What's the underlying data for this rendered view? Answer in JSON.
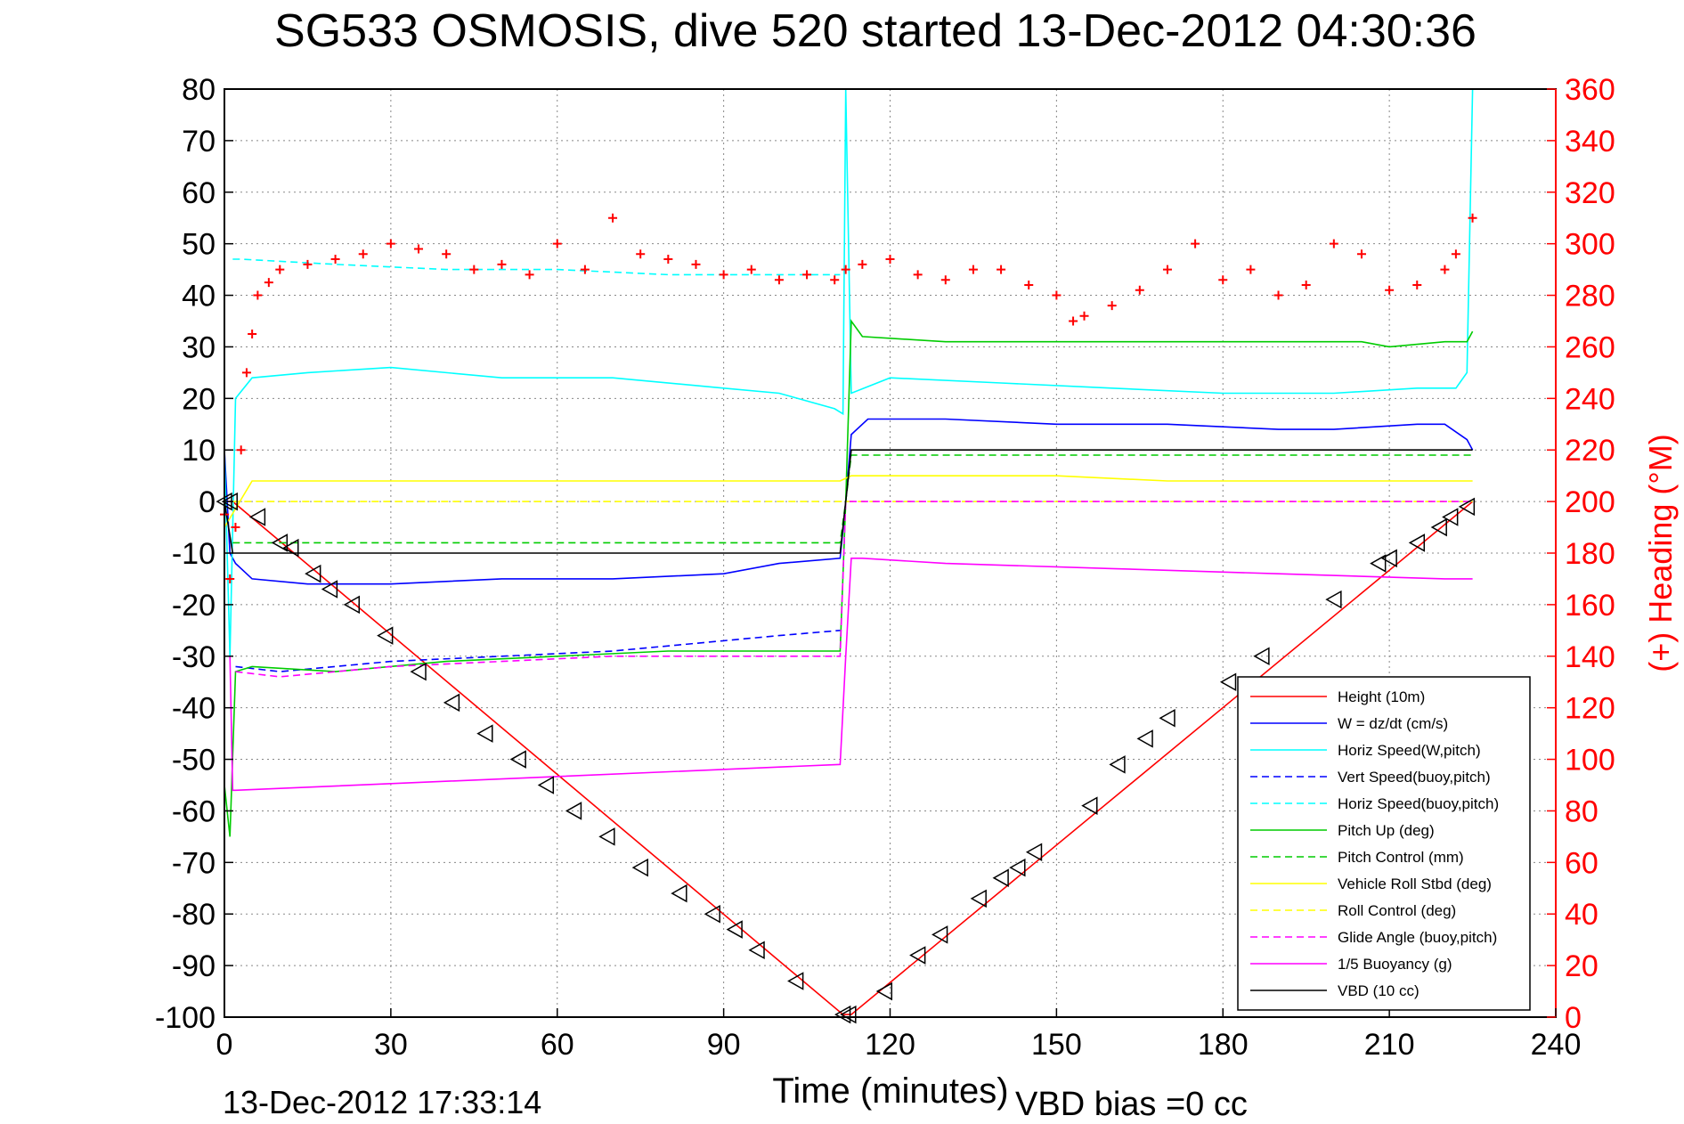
{
  "title": "SG533 OSMOSIS, dive 520 started 13-Dec-2012 04:30:36",
  "footer": {
    "timestamp": "13-Dec-2012 17:33:14",
    "vbd_bias": "VBD bias =0 cc"
  },
  "colors": {
    "height": "#ff0000",
    "w": "#0000ff",
    "horiz_speed": "#00ffff",
    "pitch": "#00cc00",
    "roll": "#ffff00",
    "glide": "#ff00ff",
    "buoyancy": "#ff00ff",
    "vbd": "#000000",
    "heading": "#ff0000",
    "right_axis": "#ff0000"
  },
  "chart_data": {
    "type": "line",
    "title": "SG533 OSMOSIS, dive 520 started 13-Dec-2012 04:30:36",
    "xlabel": "Time (minutes)",
    "ylabel": "",
    "y2label": "(+) Heading (°M)",
    "xlim": [
      0,
      240
    ],
    "ylim": [
      -100,
      80
    ],
    "y2lim": [
      0,
      360
    ],
    "xticks": [
      0,
      30,
      60,
      90,
      120,
      150,
      180,
      210,
      240
    ],
    "yticks": [
      -100,
      -90,
      -80,
      -70,
      -60,
      -50,
      -40,
      -30,
      -20,
      -10,
      0,
      10,
      20,
      30,
      40,
      50,
      60,
      70,
      80
    ],
    "y2ticks": [
      0,
      20,
      40,
      60,
      80,
      100,
      120,
      140,
      160,
      180,
      200,
      220,
      240,
      260,
      280,
      300,
      320,
      340,
      360
    ],
    "grid": true,
    "legend_position": "bottom-right",
    "series": [
      {
        "name": "Height (10m)",
        "style": "solid",
        "color": "#ff0000",
        "x": [
          0,
          1.5,
          111.5,
          113,
          225
        ],
        "y": [
          0,
          0,
          -99.5,
          -99.5,
          0
        ]
      },
      {
        "name": "W = dz/dt (cm/s)",
        "style": "solid",
        "color": "#0000ff",
        "x": [
          0,
          1,
          2,
          5,
          15,
          30,
          50,
          70,
          90,
          100,
          111,
          112,
          113,
          116,
          130,
          150,
          170,
          190,
          200,
          215,
          220,
          224,
          225
        ],
        "y": [
          10,
          -10,
          -12,
          -15,
          -16,
          -16,
          -15,
          -15,
          -14,
          -12,
          -11,
          0,
          13,
          16,
          16,
          15,
          15,
          14,
          14,
          15,
          15,
          12,
          10
        ]
      },
      {
        "name": "Horiz Speed(W,pitch)",
        "style": "solid",
        "color": "#00ffff",
        "x": [
          0,
          1,
          2,
          5,
          15,
          30,
          50,
          70,
          90,
          100,
          110,
          111.5,
          112,
          113,
          120,
          140,
          160,
          180,
          200,
          215,
          222,
          224,
          225
        ],
        "y": [
          10,
          -30,
          20,
          24,
          25,
          26,
          24,
          24,
          22,
          21,
          18,
          17,
          80,
          21,
          24,
          23,
          22,
          21,
          21,
          22,
          22,
          25,
          80
        ]
      },
      {
        "name": "Vert Speed(buoy,pitch)",
        "style": "dashed",
        "color": "#0000ff",
        "x": [
          2,
          10,
          30,
          50,
          70,
          90,
          100,
          111
        ],
        "y": [
          -32,
          -33,
          -31,
          -30,
          -29,
          -27,
          -26,
          -25
        ]
      },
      {
        "name": "Horiz Speed(buoy,pitch)",
        "style": "dashed",
        "color": "#00ffff",
        "x": [
          1.5,
          3,
          20,
          40,
          60,
          80,
          100,
          111
        ],
        "y": [
          47,
          47,
          46,
          45,
          45,
          44,
          44,
          44
        ]
      },
      {
        "name": "Pitch Up (deg)",
        "style": "solid",
        "color": "#00cc00",
        "x": [
          0,
          1,
          2,
          5,
          20,
          40,
          60,
          80,
          100,
          111,
          112,
          113,
          115,
          130,
          150,
          170,
          190,
          205,
          210,
          220,
          224,
          225
        ],
        "y": [
          -55,
          -65,
          -33,
          -32,
          -33,
          -31,
          -30,
          -29,
          -29,
          -29,
          0,
          35,
          32,
          31,
          31,
          31,
          31,
          31,
          30,
          31,
          31,
          33
        ]
      },
      {
        "name": "Pitch Control (mm)",
        "style": "dashed",
        "color": "#00cc00",
        "x": [
          1.5,
          3,
          111,
          112,
          113,
          225
        ],
        "y": [
          -8,
          -8,
          -8,
          0,
          9,
          9
        ]
      },
      {
        "name": "Vehicle Roll Stbd (deg)",
        "style": "solid",
        "color": "#ffff00",
        "x": [
          0,
          5,
          30,
          60,
          90,
          111,
          113,
          130,
          150,
          170,
          190,
          210,
          225
        ],
        "y": [
          -5,
          4,
          4,
          4,
          4,
          4,
          5,
          5,
          5,
          4,
          4,
          4,
          4
        ]
      },
      {
        "name": "Roll Control (deg)",
        "style": "dashed",
        "color": "#ffff00",
        "x": [
          1.5,
          225
        ],
        "y": [
          0,
          0
        ]
      },
      {
        "name": "Glide Angle (buoy,pitch)",
        "style": "dashed",
        "color": "#ff00ff",
        "x": [
          2,
          10,
          30,
          50,
          70,
          90,
          111,
          112,
          113,
          225
        ],
        "y": [
          -33,
          -34,
          -32,
          -31,
          -30,
          -30,
          -30,
          0,
          0,
          0
        ]
      },
      {
        "name": "1/5 Buoyancy (g)",
        "style": "solid",
        "color": "#ff00ff",
        "x": [
          1,
          1.5,
          2,
          111,
          112,
          113,
          115,
          130,
          160,
          190,
          220,
          225
        ],
        "y": [
          -30,
          -56,
          -56,
          -51,
          -30,
          -11,
          -11,
          -12,
          -13,
          -14,
          -15,
          -15
        ]
      },
      {
        "name": "VBD (10 cc)",
        "style": "solid",
        "color": "#000000",
        "x": [
          0,
          1.5,
          2,
          111,
          112,
          113,
          225
        ],
        "y": [
          0,
          -10,
          -10,
          -10,
          0,
          10,
          10
        ]
      },
      {
        "name": "",
        "style": "markers",
        "color": "#ff0000",
        "axis": "right",
        "x": [
          0,
          1,
          2,
          3,
          4,
          5,
          6,
          8,
          10,
          15,
          20,
          25,
          30,
          35,
          40,
          45,
          50,
          55,
          60,
          65,
          70,
          75,
          80,
          85,
          90,
          95,
          100,
          105,
          110,
          112,
          115,
          120,
          125,
          130,
          135,
          140,
          145,
          150,
          153,
          155,
          160,
          165,
          170,
          175,
          180,
          185,
          190,
          195,
          200,
          205,
          210,
          215,
          220,
          222,
          225
        ],
        "y": [
          195,
          170,
          190,
          220,
          250,
          265,
          280,
          285,
          290,
          292,
          294,
          296,
          300,
          298,
          296,
          290,
          292,
          288,
          300,
          290,
          310,
          296,
          294,
          292,
          288,
          290,
          286,
          288,
          286,
          290,
          292,
          294,
          288,
          286,
          290,
          290,
          284,
          280,
          270,
          272,
          276,
          282,
          290,
          300,
          286,
          290,
          280,
          284,
          300,
          296,
          282,
          284,
          290,
          296,
          310
        ]
      }
    ],
    "markers": {
      "name": "",
      "symbol": "triangle-left",
      "x": [
        0,
        1,
        6,
        10,
        12,
        16,
        19,
        23,
        29,
        35,
        41,
        47,
        53,
        58,
        63,
        69,
        75,
        82,
        88,
        92,
        96,
        103,
        111.5,
        112.5,
        119,
        125,
        129,
        136,
        140,
        143,
        146,
        156,
        161,
        166,
        170,
        181,
        187,
        200,
        208,
        210,
        215,
        219,
        221,
        224
      ],
      "y": [
        0,
        0,
        -3,
        -8,
        -9,
        -14,
        -17,
        -20,
        -26,
        -33,
        -39,
        -45,
        -50,
        -55,
        -60,
        -65,
        -71,
        -76,
        -80,
        -83,
        -87,
        -93,
        -99.5,
        -99.5,
        -95,
        -88,
        -84,
        -77,
        -73,
        -71,
        -68,
        -59,
        -51,
        -46,
        -42,
        -35,
        -30,
        -19,
        -12,
        -11,
        -8,
        -5,
        -3,
        -1
      ]
    },
    "legend": [
      {
        "label": "Height (10m)",
        "color": "#ff0000",
        "style": "solid"
      },
      {
        "label": "W = dz/dt (cm/s)",
        "color": "#0000ff",
        "style": "solid"
      },
      {
        "label": "Horiz Speed(W,pitch)",
        "color": "#00ffff",
        "style": "solid"
      },
      {
        "label": "Vert Speed(buoy,pitch)",
        "color": "#0000ff",
        "style": "dashed"
      },
      {
        "label": "Horiz Speed(buoy,pitch)",
        "color": "#00ffff",
        "style": "dashed"
      },
      {
        "label": "Pitch Up (deg)",
        "color": "#00cc00",
        "style": "solid"
      },
      {
        "label": "Pitch Control (mm)",
        "color": "#00cc00",
        "style": "dashed"
      },
      {
        "label": "Vehicle Roll Stbd (deg)",
        "color": "#ffff00",
        "style": "solid"
      },
      {
        "label": "Roll Control (deg)",
        "color": "#ffff00",
        "style": "dashed"
      },
      {
        "label": "Glide Angle (buoy,pitch)",
        "color": "#ff00ff",
        "style": "dashed"
      },
      {
        "label": "1/5 Buoyancy (g)",
        "color": "#ff00ff",
        "style": "solid"
      },
      {
        "label": "VBD (10 cc)",
        "color": "#000000",
        "style": "solid"
      }
    ]
  }
}
